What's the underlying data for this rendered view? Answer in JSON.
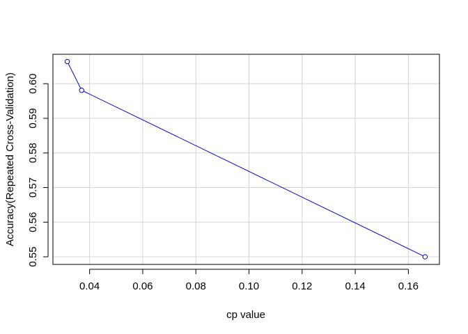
{
  "chart_data": {
    "type": "line",
    "title": "",
    "xlabel": "cp value",
    "ylabel": "Accuracy(Repeated Cross-Validation)",
    "x": [
      0.0316,
      0.037,
      0.1663
    ],
    "series": [
      {
        "values": [
          0.6064,
          0.5981,
          0.55
        ]
      }
    ],
    "xlim": [
      0.0262,
      0.1717
    ],
    "ylim": [
      0.5478,
      0.6085
    ],
    "xticks": [
      0.04,
      0.06,
      0.08,
      0.1,
      0.12,
      0.14,
      0.16
    ],
    "xtick_labels": [
      "0.04",
      "0.06",
      "0.08",
      "0.10",
      "0.12",
      "0.14",
      "0.16"
    ],
    "yticks": [
      0.55,
      0.56,
      0.57,
      0.58,
      0.59,
      0.6
    ],
    "ytick_labels": [
      "0.55",
      "0.56",
      "0.57",
      "0.58",
      "0.59",
      "0.60"
    ],
    "grid": true,
    "line_color": "#0000cd",
    "marker": "open-circle"
  }
}
